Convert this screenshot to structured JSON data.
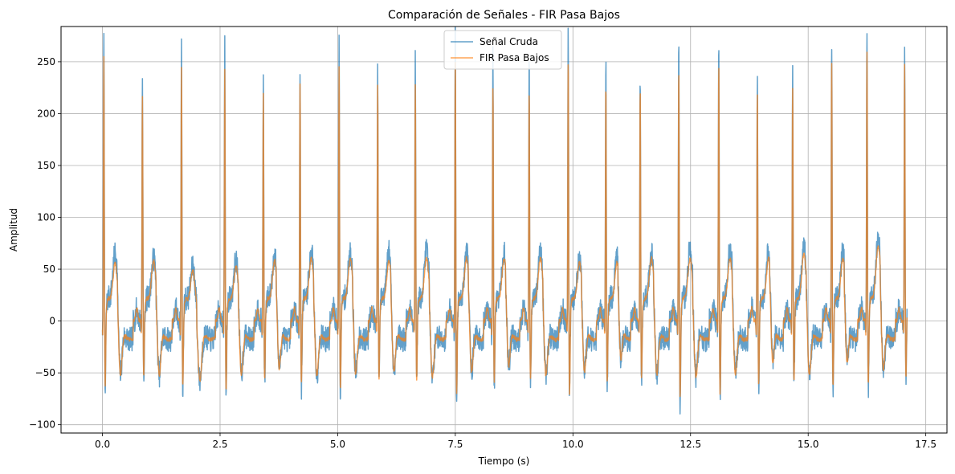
{
  "chart_data": {
    "type": "line",
    "title": "Comparación de Señales - FIR Pasa Bajos",
    "xlabel": "Tiempo (s)",
    "ylabel": "Amplitud",
    "xlim": [
      -0.88,
      17.95
    ],
    "ylim": [
      -108,
      284
    ],
    "xticks": [
      0.0,
      2.5,
      5.0,
      7.5,
      10.0,
      12.5,
      15.0,
      17.5
    ],
    "xtick_labels": [
      "0.0",
      "2.5",
      "5.0",
      "7.5",
      "10.0",
      "12.5",
      "15.0",
      "17.5"
    ],
    "yticks": [
      -100,
      -50,
      0,
      50,
      100,
      150,
      200,
      250
    ],
    "ytick_labels": [
      "−100",
      "−50",
      "0",
      "50",
      "100",
      "150",
      "200",
      "250"
    ],
    "grid": true,
    "legend_position": "top-center",
    "duration_s": 17.1,
    "beat_times_s": [
      0.03,
      0.85,
      1.68,
      2.6,
      3.42,
      4.2,
      5.03,
      5.85,
      6.65,
      7.5,
      8.3,
      9.07,
      9.9,
      10.7,
      11.43,
      12.25,
      13.1,
      13.92,
      14.67,
      15.5,
      16.25,
      17.05
    ],
    "series": [
      {
        "name": "Señal Cruda",
        "color": "#1f77b4",
        "opacity": 0.7,
        "r_peaks": [
          268,
          225,
          252,
          255,
          224,
          233,
          257,
          225,
          238,
          264,
          245,
          245,
          270,
          244,
          225,
          264,
          262,
          225,
          229,
          258,
          270,
          255
        ],
        "s_troughs": [
          -75,
          -65,
          -70,
          -75,
          -65,
          -70,
          -75,
          -65,
          -68,
          -78,
          -70,
          -67,
          -78,
          -70,
          -65,
          -90,
          -82,
          -72,
          -68,
          -75,
          -70,
          -65
        ],
        "t_wave_peaks": [
          75,
          70,
          62,
          68,
          73,
          77,
          75,
          76,
          80,
          76,
          76,
          74,
          70,
          70,
          75,
          80,
          80,
          78,
          80,
          78,
          91,
          73
        ],
        "baseline_noise_amplitude": 12
      },
      {
        "name": "FIR Pasa Bajos",
        "color": "#ff7f0e",
        "opacity": 0.7,
        "r_peaks": [
          240,
          203,
          230,
          230,
          205,
          215,
          232,
          215,
          215,
          240,
          215,
          210,
          242,
          215,
          210,
          232,
          235,
          210,
          210,
          238,
          247,
          232
        ],
        "s_troughs": [
          -68,
          -60,
          -68,
          -72,
          -60,
          -65,
          -72,
          -60,
          -62,
          -75,
          -65,
          -62,
          -75,
          -65,
          -60,
          -80,
          -75,
          -68,
          -62,
          -68,
          -65,
          -60
        ],
        "t_wave_peaks": [
          65,
          67,
          58,
          62,
          68,
          70,
          70,
          68,
          70,
          70,
          70,
          70,
          66,
          66,
          70,
          70,
          70,
          70,
          74,
          70,
          82,
          66
        ],
        "baseline_noise_amplitude": 2
      }
    ]
  }
}
